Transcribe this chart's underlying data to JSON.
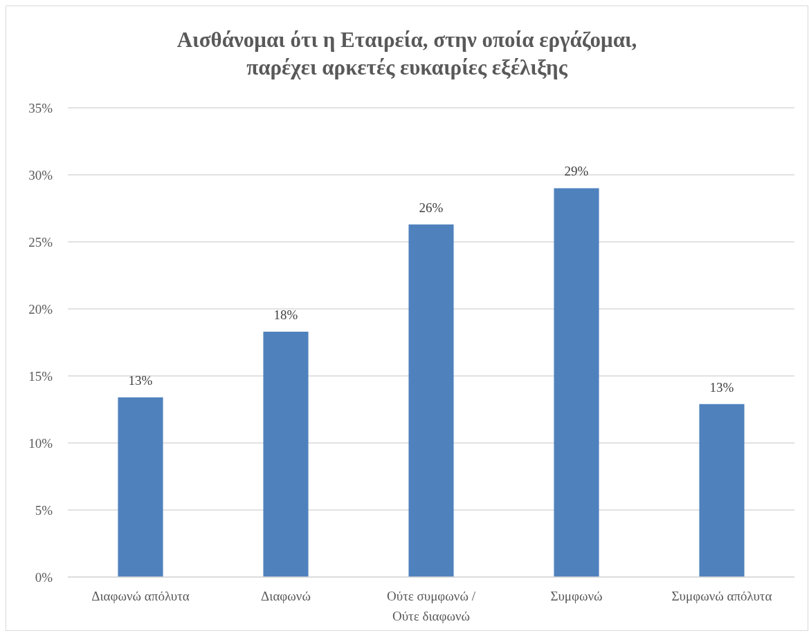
{
  "chart_data": {
    "type": "bar",
    "title": "Αισθάνομαι ότι η Εταιρεία, στην οποία εργάζομαι, παρέχει αρκετές ευκαιρίες εξέλιξης",
    "categories": [
      "Διαφωνώ απόλυτα",
      "Διαφωνώ",
      "Ούτε συμφωνώ / Ούτε διαφωνώ",
      "Συμφωνώ",
      "Συμφωνώ απόλυτα"
    ],
    "values": [
      13.4,
      18.3,
      26.3,
      29.0,
      12.9
    ],
    "value_labels": [
      "13%",
      "18%",
      "26%",
      "29%",
      "13%"
    ],
    "color": "#4f81bd",
    "ylim": [
      0,
      35
    ],
    "yticks": [
      {
        "value": 0,
        "label": "0%"
      },
      {
        "value": 5,
        "label": "5%"
      },
      {
        "value": 10,
        "label": "10%"
      },
      {
        "value": 15,
        "label": "15%"
      },
      {
        "value": 20,
        "label": "20%"
      },
      {
        "value": 25,
        "label": "25%"
      },
      {
        "value": 30,
        "label": "30%"
      },
      {
        "value": 35,
        "label": "35%"
      }
    ],
    "grid": "y"
  }
}
